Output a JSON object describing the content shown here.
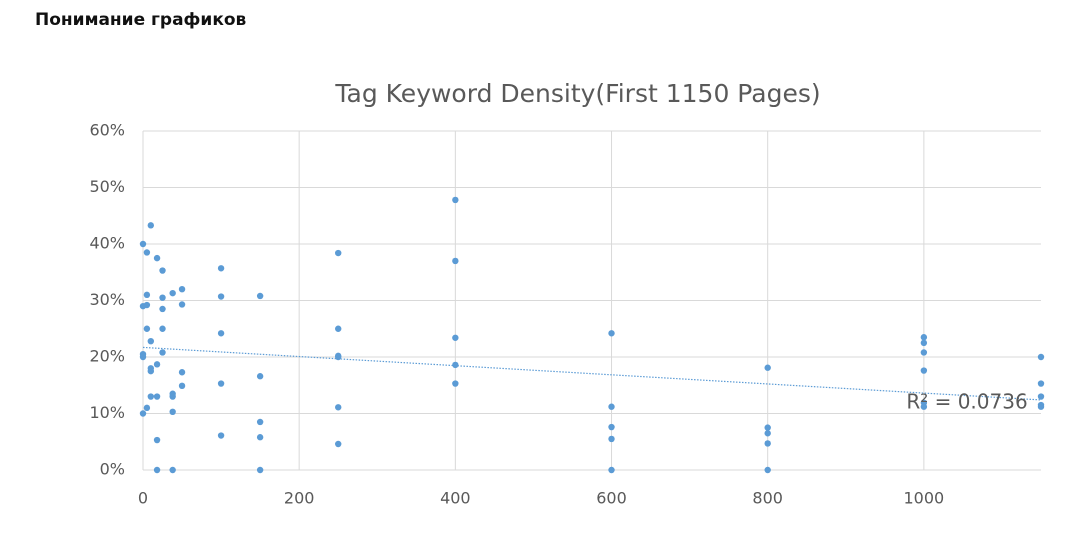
{
  "header": {
    "title": "Понимание графиков"
  },
  "chart_data": {
    "type": "scatter",
    "title": "Tag Keyword Density(First 1150 Pages)",
    "x": [
      0,
      0,
      0,
      0,
      0,
      5,
      5,
      5,
      5,
      5,
      10,
      10,
      10,
      10,
      10,
      18,
      18,
      18,
      18,
      18,
      25,
      25,
      25,
      25,
      25,
      38,
      38,
      38,
      38,
      38,
      50,
      50,
      50,
      50,
      100,
      100,
      100,
      100,
      100,
      150,
      150,
      150,
      150,
      150,
      250,
      250,
      250,
      250,
      250,
      250,
      400,
      400,
      400,
      400,
      400,
      600,
      600,
      600,
      600,
      600,
      800,
      800,
      800,
      800,
      800,
      1000,
      1000,
      1000,
      1000,
      1000,
      1000,
      1150,
      1150,
      1150,
      1150,
      1150
    ],
    "values": [
      40,
      29,
      20.5,
      20,
      10,
      38.5,
      31,
      29.2,
      25,
      11,
      43.3,
      22.8,
      18,
      17.5,
      13,
      37.5,
      18.7,
      13,
      5.3,
      0,
      35.3,
      30.5,
      28.5,
      25,
      20.8,
      31.3,
      13.5,
      13,
      10.3,
      0,
      32,
      29.3,
      17.3,
      14.9,
      35.7,
      30.7,
      24.2,
      15.3,
      6.1,
      30.8,
      16.6,
      8.5,
      5.8,
      0,
      38.4,
      25,
      20.2,
      20,
      11.1,
      4.6,
      47.8,
      37,
      23.4,
      18.6,
      15.3,
      24.2,
      11.2,
      7.6,
      5.5,
      0,
      18.1,
      7.5,
      6.5,
      4.7,
      0,
      23.5,
      22.5,
      20.8,
      17.6,
      11.9,
      11.2,
      20,
      15.3,
      13,
      11.5,
      11.2
    ],
    "color": "#5b9bd5",
    "trendline": {
      "x": [
        0,
        1150
      ],
      "values": [
        21.7,
        12.4
      ],
      "color": "#5b9bd5"
    },
    "annotation": "R² = 0.0736",
    "xlim": [
      0,
      1150
    ],
    "xticks": [
      0,
      200,
      400,
      600,
      800,
      1000
    ],
    "ylim": [
      0,
      60
    ],
    "yticks": [
      {
        "value": 0,
        "label": "0%"
      },
      {
        "value": 10,
        "label": "10%"
      },
      {
        "value": 20,
        "label": "20%"
      },
      {
        "value": 30,
        "label": "30%"
      },
      {
        "value": 40,
        "label": "40%"
      },
      {
        "value": 50,
        "label": "50%"
      },
      {
        "value": 60,
        "label": "60%"
      }
    ],
    "grid": true
  }
}
